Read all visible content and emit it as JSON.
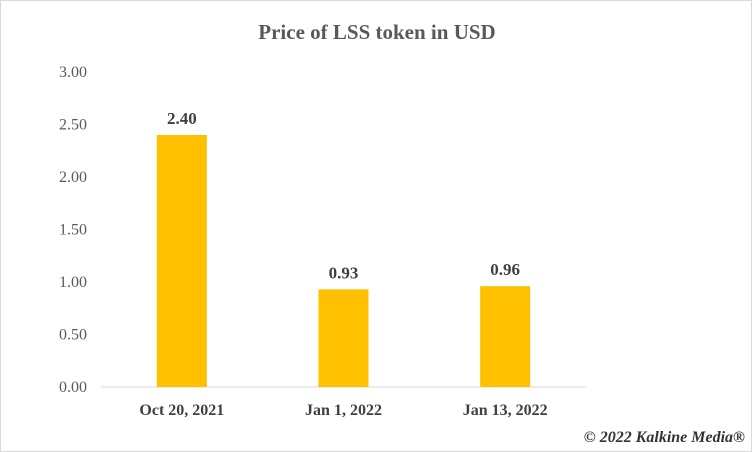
{
  "chart_data": {
    "type": "bar",
    "title": "Price of LSS token in USD",
    "categories": [
      "Oct 20, 2021",
      "Jan 1, 2022",
      "Jan 13, 2022"
    ],
    "values": [
      2.4,
      0.93,
      0.96
    ],
    "data_labels": [
      "2.40",
      "0.93",
      "0.96"
    ],
    "ylim": [
      0,
      3
    ],
    "yticks": [
      "0.00",
      "0.50",
      "1.00",
      "1.50",
      "2.00",
      "2.50",
      "3.00"
    ],
    "grid": false,
    "bar_color": "#FFC000",
    "xlabel": "",
    "ylabel": ""
  },
  "watermark": "© 2022 Kalkine Media®"
}
